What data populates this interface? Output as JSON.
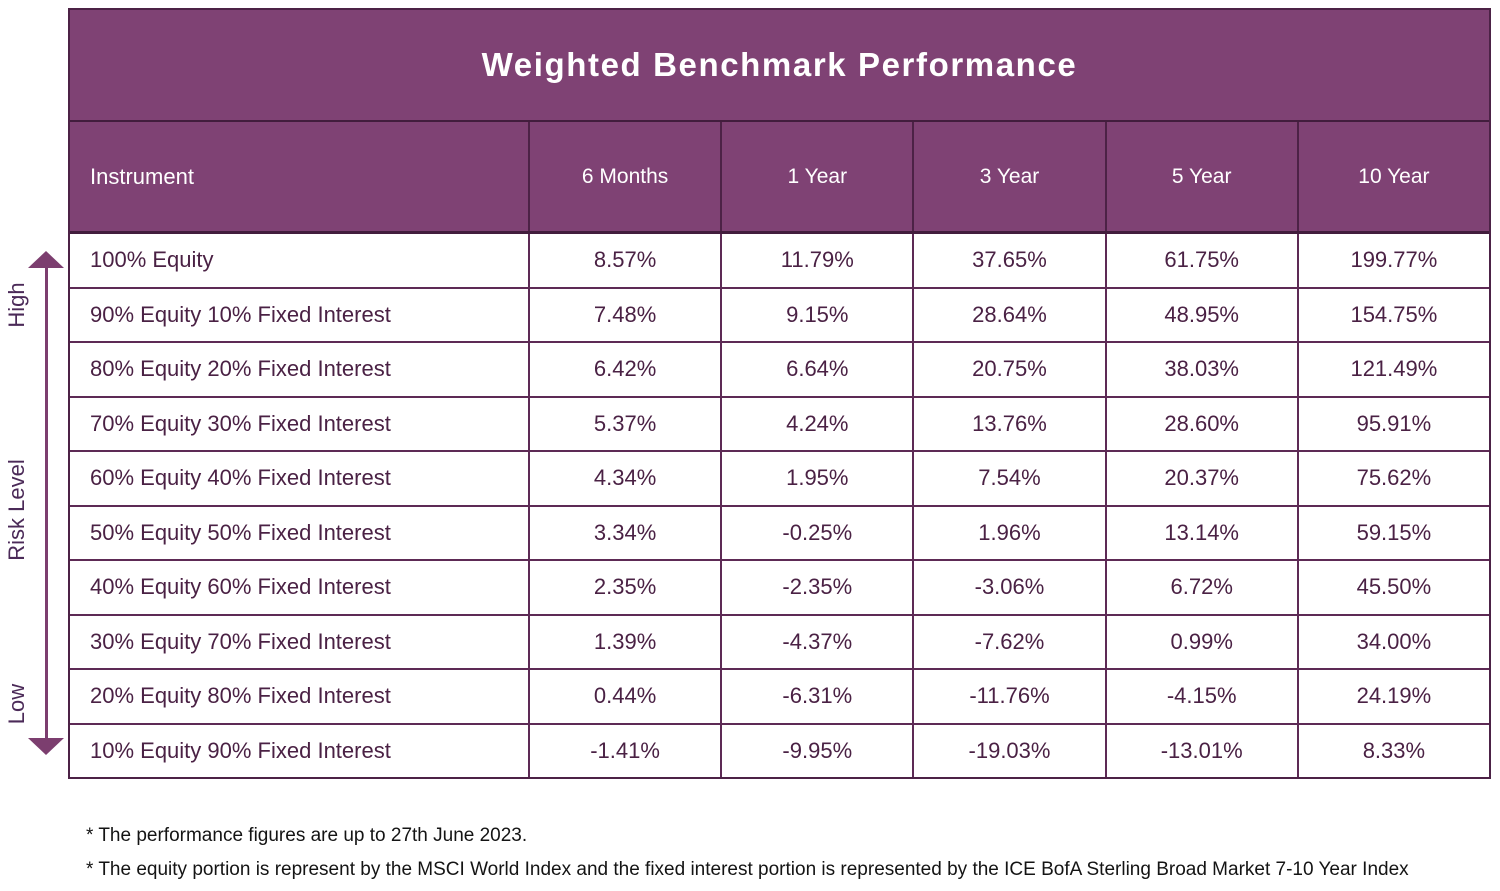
{
  "title": "Weighted Benchmark Performance",
  "colors": {
    "band_purple": "#7f4274",
    "border_dark": "#4c2246",
    "row_separator": "#5d2a55",
    "data_text": "#4a2144",
    "axis_text": "#4b2a58",
    "arrow": "#7c3e6f",
    "title_text": "#ffffff"
  },
  "risk_axis": {
    "top_label": "High",
    "middle_label": "Risk Level",
    "bottom_label": "Low"
  },
  "table": {
    "columns": [
      "Instrument",
      "6 Months",
      "1 Year",
      "3 Year",
      "5 Year",
      "10 Year"
    ],
    "rows": [
      {
        "instrument": "100% Equity",
        "values": [
          "8.57%",
          "11.79%",
          "37.65%",
          "61.75%",
          "199.77%"
        ]
      },
      {
        "instrument": "90% Equity 10% Fixed Interest",
        "values": [
          "7.48%",
          "9.15%",
          "28.64%",
          "48.95%",
          "154.75%"
        ]
      },
      {
        "instrument": "80% Equity 20% Fixed Interest",
        "values": [
          "6.42%",
          "6.64%",
          "20.75%",
          "38.03%",
          "121.49%"
        ]
      },
      {
        "instrument": "70% Equity 30% Fixed Interest",
        "values": [
          "5.37%",
          "4.24%",
          "13.76%",
          "28.60%",
          "95.91%"
        ]
      },
      {
        "instrument": "60% Equity 40% Fixed Interest",
        "values": [
          "4.34%",
          "1.95%",
          "7.54%",
          "20.37%",
          "75.62%"
        ]
      },
      {
        "instrument": "50% Equity 50% Fixed Interest",
        "values": [
          "3.34%",
          "-0.25%",
          "1.96%",
          "13.14%",
          "59.15%"
        ]
      },
      {
        "instrument": "40% Equity 60% Fixed Interest",
        "values": [
          "2.35%",
          "-2.35%",
          "-3.06%",
          "6.72%",
          "45.50%"
        ]
      },
      {
        "instrument": "30% Equity 70% Fixed Interest",
        "values": [
          "1.39%",
          "-4.37%",
          "-7.62%",
          "0.99%",
          "34.00%"
        ]
      },
      {
        "instrument": "20% Equity 80% Fixed Interest",
        "values": [
          "0.44%",
          "-6.31%",
          "-11.76%",
          "-4.15%",
          "24.19%"
        ]
      },
      {
        "instrument": "10% Equity 90% Fixed Interest",
        "values": [
          "-1.41%",
          "-9.95%",
          "-19.03%",
          "-13.01%",
          "8.33%"
        ]
      }
    ]
  },
  "footnotes": [
    "* The performance figures are up to 27th June 2023.",
    "* The equity portion is represent by the MSCI World Index and the fixed interest portion is represented by the ICE BofA Sterling Broad Market 7-10 Year Index"
  ],
  "chart_data": {
    "type": "table",
    "title": "Weighted Benchmark Performance",
    "columns": [
      "Instrument",
      "6 Months",
      "1 Year",
      "3 Year",
      "5 Year",
      "10 Year"
    ],
    "risk_axis": {
      "label": "Risk Level",
      "high": "High",
      "low": "Low",
      "direction": "top row = high risk"
    },
    "rows": [
      [
        "100% Equity",
        8.57,
        11.79,
        37.65,
        61.75,
        199.77
      ],
      [
        "90% Equity 10% Fixed Interest",
        7.48,
        9.15,
        28.64,
        48.95,
        154.75
      ],
      [
        "80% Equity 20% Fixed Interest",
        6.42,
        6.64,
        20.75,
        38.03,
        121.49
      ],
      [
        "70% Equity 30% Fixed Interest",
        5.37,
        4.24,
        13.76,
        28.6,
        95.91
      ],
      [
        "60% Equity 40% Fixed Interest",
        4.34,
        1.95,
        7.54,
        20.37,
        75.62
      ],
      [
        "50% Equity 50% Fixed Interest",
        3.34,
        -0.25,
        1.96,
        13.14,
        59.15
      ],
      [
        "40% Equity 60% Fixed Interest",
        2.35,
        -2.35,
        -3.06,
        6.72,
        45.5
      ],
      [
        "30% Equity 70% Fixed Interest",
        1.39,
        -4.37,
        -7.62,
        0.99,
        34.0
      ],
      [
        "20% Equity 80% Fixed Interest",
        0.44,
        -6.31,
        -11.76,
        -4.15,
        24.19
      ],
      [
        "10% Equity 90% Fixed Interest",
        -1.41,
        -9.95,
        -19.03,
        -13.01,
        8.33
      ]
    ],
    "units": "percent",
    "footnotes": [
      "* The performance figures are up to 27th June 2023.",
      "* The equity portion is represent by the MSCI World Index and the fixed interest portion is represented by the ICE BofA Sterling Broad Market 7-10 Year Index"
    ]
  }
}
